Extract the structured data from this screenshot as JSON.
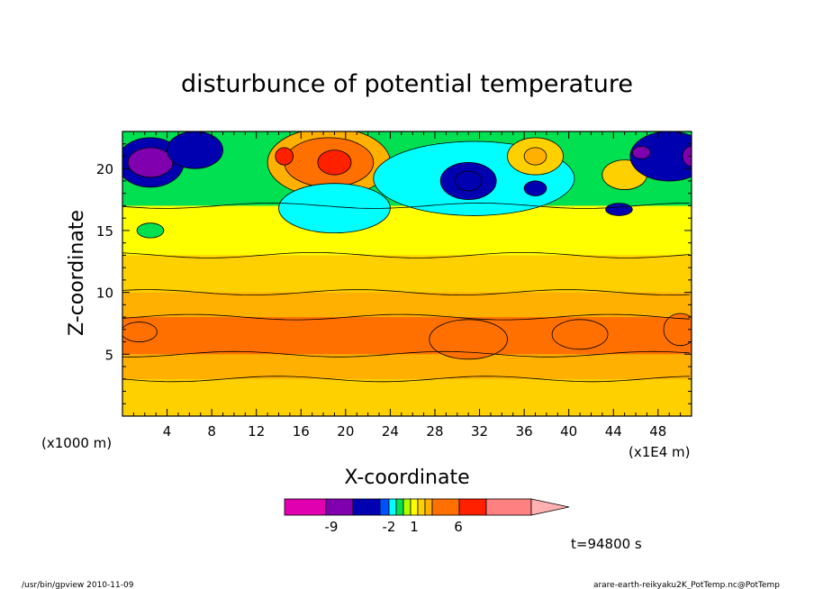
{
  "chart_data": {
    "type": "heatmap",
    "title": "disturbunce of potential temperature",
    "xlabel": "X-coordinate",
    "ylabel": "Z-coordinate",
    "x_scale_note": "(x1E4 m)",
    "y_scale_note": "(x1000 m)",
    "xlim": [
      0,
      51
    ],
    "ylim": [
      0,
      23
    ],
    "x_ticks": [
      "4",
      "8",
      "12",
      "16",
      "20",
      "24",
      "28",
      "32",
      "36",
      "40",
      "44",
      "48"
    ],
    "y_ticks": [
      "5",
      "10",
      "15",
      "20"
    ],
    "time_label": "t=94800 s",
    "colorbar": {
      "colors": [
        "#e000b0",
        "#8000b0",
        "#0000b0",
        "#0050ff",
        "#00ffff",
        "#00e050",
        "#b0ff00",
        "#ffff00",
        "#ffd000",
        "#ffb000",
        "#ff7000",
        "#ff2000",
        "#ff8080",
        "#ffb0b0"
      ],
      "labels": [
        "-9",
        "-2",
        "1",
        "6"
      ]
    },
    "regions": [
      {
        "level": 1,
        "shape": "band",
        "z": [
          0,
          3
        ]
      },
      {
        "level": 2,
        "shape": "band",
        "z": [
          3,
          10
        ]
      },
      {
        "level": 3,
        "shape": "band",
        "z": [
          5,
          8
        ]
      },
      {
        "level": 1,
        "shape": "band",
        "z": [
          10,
          13
        ]
      },
      {
        "level": 0,
        "shape": "band",
        "z": [
          13,
          17
        ]
      },
      {
        "level": -1,
        "shape": "band",
        "z": [
          17,
          23
        ]
      },
      {
        "level": 3,
        "x": 31,
        "z": 6.2,
        "rx": 3.5,
        "rz": 1.6
      },
      {
        "level": 3,
        "x": 41,
        "z": 6.6,
        "rx": 2.5,
        "rz": 1.2
      },
      {
        "level": 3,
        "x": 50,
        "z": 7.0,
        "rx": 1.5,
        "rz": 1.3
      },
      {
        "level": 3,
        "x": 1.5,
        "z": 6.8,
        "rx": 1.6,
        "rz": 0.8
      },
      {
        "level": -4,
        "x": 2.5,
        "z": 20.5,
        "rx": 3.0,
        "rz": 2.0
      },
      {
        "level": -7,
        "x": 2.5,
        "z": 20.5,
        "rx": 2.0,
        "rz": 1.2
      },
      {
        "level": -4,
        "x": 6.5,
        "z": 21.5,
        "rx": 2.5,
        "rz": 1.5
      },
      {
        "level": -1,
        "x": 2.5,
        "z": 15.0,
        "rx": 1.2,
        "rz": 0.6
      },
      {
        "level": 2,
        "x": 18.5,
        "z": 20.5,
        "rx": 5.5,
        "rz": 2.8
      },
      {
        "level": 3,
        "x": 18.5,
        "z": 20.5,
        "rx": 4.0,
        "rz": 2.0
      },
      {
        "level": 4,
        "x": 19.0,
        "z": 20.5,
        "rx": 1.5,
        "rz": 1.0
      },
      {
        "level": 4,
        "x": 14.5,
        "z": 21.0,
        "rx": 0.8,
        "rz": 0.7
      },
      {
        "level": -2,
        "x": 19.0,
        "z": 16.8,
        "rx": 5.0,
        "rz": 2.0
      },
      {
        "level": -2,
        "x": 31.5,
        "z": 19.2,
        "rx": 9.0,
        "rz": 3.0
      },
      {
        "level": -4,
        "x": 31.0,
        "z": 19.0,
        "rx": 2.5,
        "rz": 1.5
      },
      {
        "level": -5,
        "x": 31.0,
        "z": 19.0,
        "rx": 1.2,
        "rz": 0.8
      },
      {
        "level": -4,
        "x": 37.0,
        "z": 18.4,
        "rx": 1.0,
        "rz": 0.6
      },
      {
        "level": -4,
        "x": 44.5,
        "z": 16.7,
        "rx": 1.2,
        "rz": 0.5
      },
      {
        "level": 1,
        "x": 37.0,
        "z": 21.0,
        "rx": 2.5,
        "rz": 1.5
      },
      {
        "level": 2,
        "x": 37.0,
        "z": 21.0,
        "rx": 1.0,
        "rz": 0.7
      },
      {
        "level": 1,
        "x": 45.0,
        "z": 19.5,
        "rx": 2.0,
        "rz": 1.2
      },
      {
        "level": -4,
        "x": 49.0,
        "z": 21.0,
        "rx": 3.5,
        "rz": 2.0
      },
      {
        "level": -7,
        "x": 46.5,
        "z": 21.3,
        "rx": 0.8,
        "rz": 0.5
      },
      {
        "level": -7,
        "x": 51.0,
        "z": 21.0,
        "rx": 0.8,
        "rz": 0.8
      }
    ]
  },
  "footer": {
    "left": "/usr/bin/gpview   2010-11-09",
    "right": "arare-earth-reikyaku2K_PotTemp.nc@PotTemp"
  }
}
